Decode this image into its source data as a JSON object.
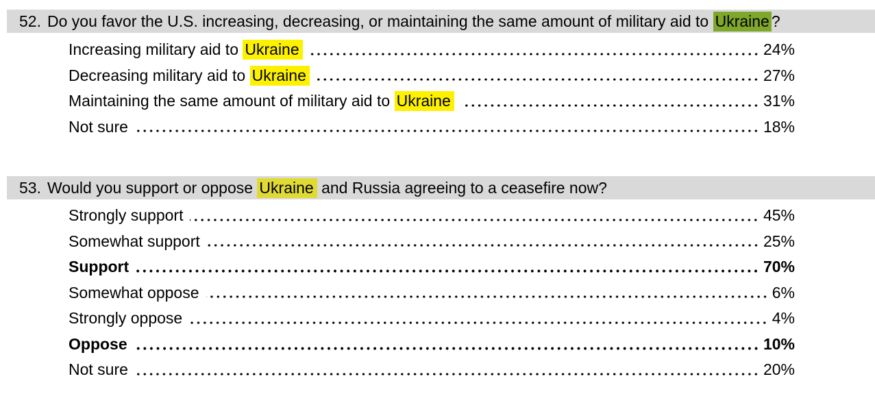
{
  "colors": {
    "page_bg": "#ffffff",
    "text": "#000000",
    "header_bg": "#d9d9d9",
    "highlight_match": "#fdf100",
    "highlight_match_on_gray": "#e0da35",
    "highlight_current": "#7ea72c"
  },
  "questions": [
    {
      "number": "52.",
      "pre": "Do you favor the U.S. increasing, decreasing, or maintaining the same amount of military aid to ",
      "hl": "Ukraine",
      "post": "?",
      "answers": [
        {
          "pre": "Increasing military aid to ",
          "hl": "Ukraine",
          "value": "24%"
        },
        {
          "pre": "Decreasing military aid to ",
          "hl": "Ukraine",
          "value": "27%"
        },
        {
          "pre": "Maintaining the same amount of military aid to ",
          "hl": "Ukraine",
          "value": "31%"
        },
        {
          "pre": "Not sure",
          "value": "18%"
        }
      ]
    },
    {
      "number": "53.",
      "pre": "Would you support or oppose ",
      "hl": "Ukraine",
      "post": " and Russia agreeing to a ceasefire now?",
      "answers": [
        {
          "pre": "Strongly support",
          "value": "45%"
        },
        {
          "pre": "Somewhat support",
          "value": "25%"
        },
        {
          "pre": "Support",
          "value": "70%",
          "bold": true
        },
        {
          "pre": "Somewhat oppose",
          "value": "6%"
        },
        {
          "pre": "Strongly oppose",
          "value": "4%"
        },
        {
          "pre": "Oppose",
          "value": "10%",
          "bold": true
        },
        {
          "pre": "Not sure",
          "value": "20%"
        }
      ]
    }
  ]
}
